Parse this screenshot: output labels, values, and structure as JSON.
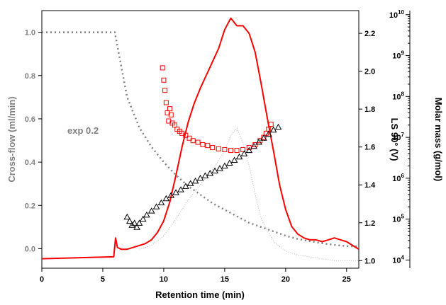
{
  "chart_data": {
    "type": "line",
    "xlabel": "Retention time (min)",
    "x_ticks": [
      "0",
      "5",
      "10",
      "15",
      "20",
      "25"
    ],
    "xlim": [
      0,
      26
    ],
    "left_axis": {
      "label": "Cross-flow (ml/min)",
      "color": "#808080",
      "ticks": [
        "0.0",
        "0.2",
        "0.4",
        "0.6",
        "0.8",
        "1.0"
      ],
      "ylim": [
        -0.09,
        1.1
      ]
    },
    "ls_axis": {
      "label": "LS 90° (V)",
      "ticks": [
        "1.0",
        "1.2",
        "1.4",
        "1.6",
        "1.8",
        "2.0",
        "2.2"
      ],
      "ylim": [
        0.96,
        2.32
      ]
    },
    "mm_axis": {
      "label": "Molar mass (g/mol)",
      "scale": "log",
      "tick_exponents": [
        "4",
        "5",
        "6",
        "7",
        "8",
        "9",
        "10"
      ],
      "ylim_log10": [
        3.8,
        10.1
      ]
    },
    "annotation": "exp 0.2",
    "colors": {
      "ls": "#ff0000",
      "cross_flow": "#808080",
      "molar_mass_ls": "#ff0000",
      "molar_mass_black": "#000000",
      "dotted": "#b4b4b4"
    },
    "series": [
      {
        "key": "cross_flow",
        "axis": "left",
        "style": "dotted",
        "x": [
          0,
          6,
          6.05,
          7,
          8,
          9,
          10,
          11,
          12,
          13,
          14,
          15,
          16,
          17,
          18,
          19,
          20,
          21,
          22,
          23,
          24,
          25,
          26
        ],
        "y": [
          1.0,
          1.0,
          0.98,
          0.7,
          0.56,
          0.47,
          0.4,
          0.34,
          0.29,
          0.25,
          0.21,
          0.18,
          0.15,
          0.12,
          0.1,
          0.08,
          0.06,
          0.045,
          0.035,
          0.025,
          0.018,
          0.012,
          0.01
        ]
      },
      {
        "key": "ls",
        "axis": "ls",
        "style": "solid",
        "x": [
          0,
          5.9,
          6.05,
          6.2,
          6.5,
          7,
          7.5,
          8,
          8.5,
          9,
          9.5,
          10,
          10.5,
          11,
          11.5,
          12,
          12.5,
          13,
          13.5,
          14,
          14.5,
          15,
          15.5,
          16,
          16.5,
          17,
          17.5,
          18,
          18.5,
          19,
          19.5,
          20,
          20.5,
          21,
          21.5,
          22,
          22.5,
          23,
          23.5,
          24,
          24.5,
          25,
          25.5,
          26
        ],
        "y": [
          1.01,
          1.02,
          1.12,
          1.07,
          1.06,
          1.06,
          1.07,
          1.08,
          1.09,
          1.11,
          1.15,
          1.21,
          1.31,
          1.45,
          1.6,
          1.73,
          1.83,
          1.91,
          1.98,
          2.05,
          2.12,
          2.22,
          2.28,
          2.24,
          2.24,
          2.2,
          2.1,
          1.93,
          1.75,
          1.58,
          1.4,
          1.27,
          1.18,
          1.14,
          1.12,
          1.11,
          1.11,
          1.1,
          1.11,
          1.12,
          1.11,
          1.1,
          1.08,
          1.06
        ]
      },
      {
        "key": "ls_dotted",
        "axis": "ls",
        "style": "dotted",
        "x": [
          8,
          9,
          10,
          11,
          12,
          13,
          14,
          15,
          15.5,
          16,
          16.5,
          17,
          17.5,
          18,
          19,
          20,
          21,
          22,
          23,
          24,
          25,
          26
        ],
        "y": [
          1.06,
          1.08,
          1.13,
          1.22,
          1.32,
          1.4,
          1.48,
          1.58,
          1.66,
          1.7,
          1.62,
          1.5,
          1.35,
          1.22,
          1.1,
          1.05,
          1.03,
          1.02,
          1.01,
          1.0,
          1.0,
          1.0
        ]
      },
      {
        "key": "molar_mass_red",
        "axis": "mm",
        "style": "squares",
        "x": [
          9.9,
          10.0,
          10.1,
          10.2,
          10.3,
          10.4,
          10.5,
          10.6,
          10.7,
          10.9,
          11.1,
          11.3,
          11.5,
          11.8,
          12.1,
          12.4,
          12.8,
          13.2,
          13.6,
          14.0,
          14.5,
          15.0,
          15.5,
          16.0,
          16.5,
          17.0,
          17.5,
          17.9,
          18.2,
          18.4,
          18.6,
          18.8
        ],
        "y": [
          8.7,
          8.4,
          8.15,
          7.85,
          7.6,
          7.4,
          7.7,
          7.55,
          7.35,
          7.3,
          7.2,
          7.15,
          7.1,
          7.05,
          6.98,
          6.92,
          6.88,
          6.82,
          6.8,
          6.75,
          6.72,
          6.7,
          6.68,
          6.68,
          6.7,
          6.75,
          6.82,
          6.92,
          7.0,
          7.1,
          7.2,
          7.32
        ]
      },
      {
        "key": "molar_mass_black",
        "axis": "mm",
        "style": "triangles",
        "x": [
          7.0,
          7.2,
          7.4,
          7.6,
          7.8,
          8.0,
          8.3,
          8.6,
          9.0,
          9.4,
          9.8,
          10.2,
          10.6,
          11.0,
          11.4,
          11.8,
          12.2,
          12.6,
          13.0,
          13.4,
          13.8,
          14.2,
          14.6,
          15.0,
          15.4,
          15.8,
          16.2,
          16.6,
          17.0,
          17.4,
          17.8,
          18.2,
          18.6,
          19.0,
          19.4
        ],
        "y": [
          5.05,
          4.95,
          4.85,
          4.9,
          4.8,
          4.9,
          5.0,
          5.1,
          5.2,
          5.3,
          5.4,
          5.5,
          5.58,
          5.65,
          5.72,
          5.8,
          5.87,
          5.93,
          6.0,
          6.06,
          6.12,
          6.18,
          6.24,
          6.3,
          6.37,
          6.44,
          6.52,
          6.6,
          6.68,
          6.78,
          6.88,
          6.98,
          7.08,
          7.18,
          7.25
        ]
      }
    ]
  }
}
